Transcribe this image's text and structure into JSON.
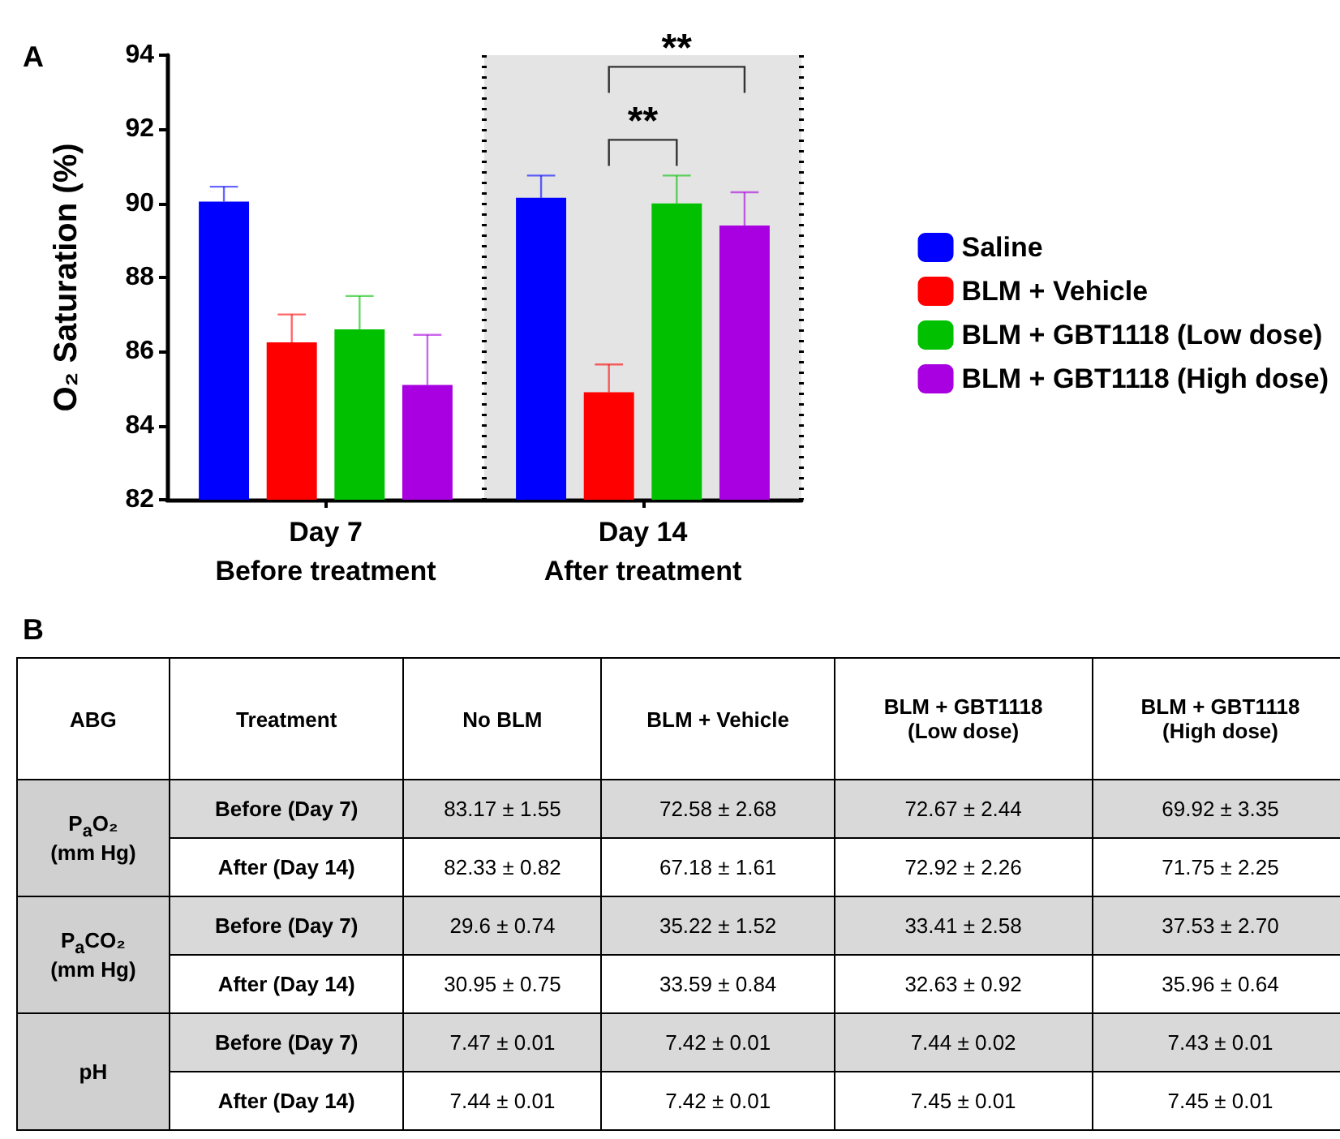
{
  "chart_data": [
    {
      "type": "bar",
      "ylabel": "O₂ Saturation (%)",
      "categories": [
        "Day 7\nBefore treatment",
        "Day 14\nAfter treatment"
      ],
      "series": [
        {
          "name": "Saline",
          "color": "#0000ff",
          "values": [
            90.05,
            90.15
          ],
          "errors": [
            [
              90.05,
              90.45
            ],
            [
              90.15,
              90.75
            ]
          ]
        },
        {
          "name": "BLM + Vehicle",
          "color": "#ff0000",
          "values": [
            86.25,
            84.9
          ],
          "errors": [
            [
              86.25,
              87.0
            ],
            [
              84.9,
              85.65
            ]
          ]
        },
        {
          "name": "BLM + GBT1118 (Low dose)",
          "color": "#00c000",
          "values": [
            86.6,
            90.0
          ],
          "errors": [
            [
              86.6,
              87.5
            ],
            [
              90.0,
              90.75
            ]
          ]
        },
        {
          "name": "BLM + GBT1118 (High dose)",
          "color": "#a800e0",
          "values": [
            85.1,
            89.4
          ],
          "errors": [
            [
              85.1,
              86.45
            ],
            [
              89.4,
              90.3
            ]
          ]
        }
      ],
      "ylim": [
        82,
        94
      ],
      "yticks": [
        82,
        84,
        86,
        88,
        90,
        92,
        94
      ],
      "grid": false,
      "legend": "right",
      "bands": [
        {
          "axis": "x",
          "from": "Day 14\nAfter treatment",
          "to": "Day 14\nAfter treatment",
          "color": "#e4e4e4"
        }
      ],
      "annotations": [
        "A",
        "**",
        "**"
      ]
    },
    {
      "type": "other",
      "title": "B",
      "categories": [
        "ABG",
        "Treatment",
        "No BLM",
        "BLM + Vehicle",
        "BLM + GBT1118\n(Low dose)",
        "BLM + GBT1118\n(High dose)"
      ],
      "cell_labels": [
        [
          "P$_{a}$O₂\n(mm Hg)",
          "Before (Day 7)",
          "83.17 ± 1.55",
          "72.58 ± 2.68",
          "72.67 ± 2.44",
          "69.92 ± 3.35"
        ],
        [
          null,
          "After (Day 14)",
          "82.33 ± 0.82",
          "67.18 ± 1.61",
          "72.92 ± 2.26",
          "71.75 ± 2.25"
        ],
        [
          "P$_{a}$CO₂\n(mm Hg)",
          "Before (Day 7)",
          "29.6 ± 0.74",
          "35.22 ± 1.52",
          "33.41 ± 2.58",
          "37.53 ± 2.70"
        ],
        [
          null,
          "After (Day 14)",
          "30.95 ± 0.75",
          "33.59 ± 0.84",
          "32.63 ± 0.92",
          "35.96 ± 0.64"
        ],
        [
          "pH",
          "Before (Day 7)",
          "7.47 ± 0.01",
          "7.42 ± 0.01",
          "7.44 ± 0.02",
          "7.43 ± 0.01"
        ],
        [
          null,
          "After (Day 14)",
          "7.44 ± 0.01",
          "7.42 ± 0.01",
          "7.45 ± 0.01",
          "7.45 ± 0.01"
        ]
      ]
    }
  ]
}
